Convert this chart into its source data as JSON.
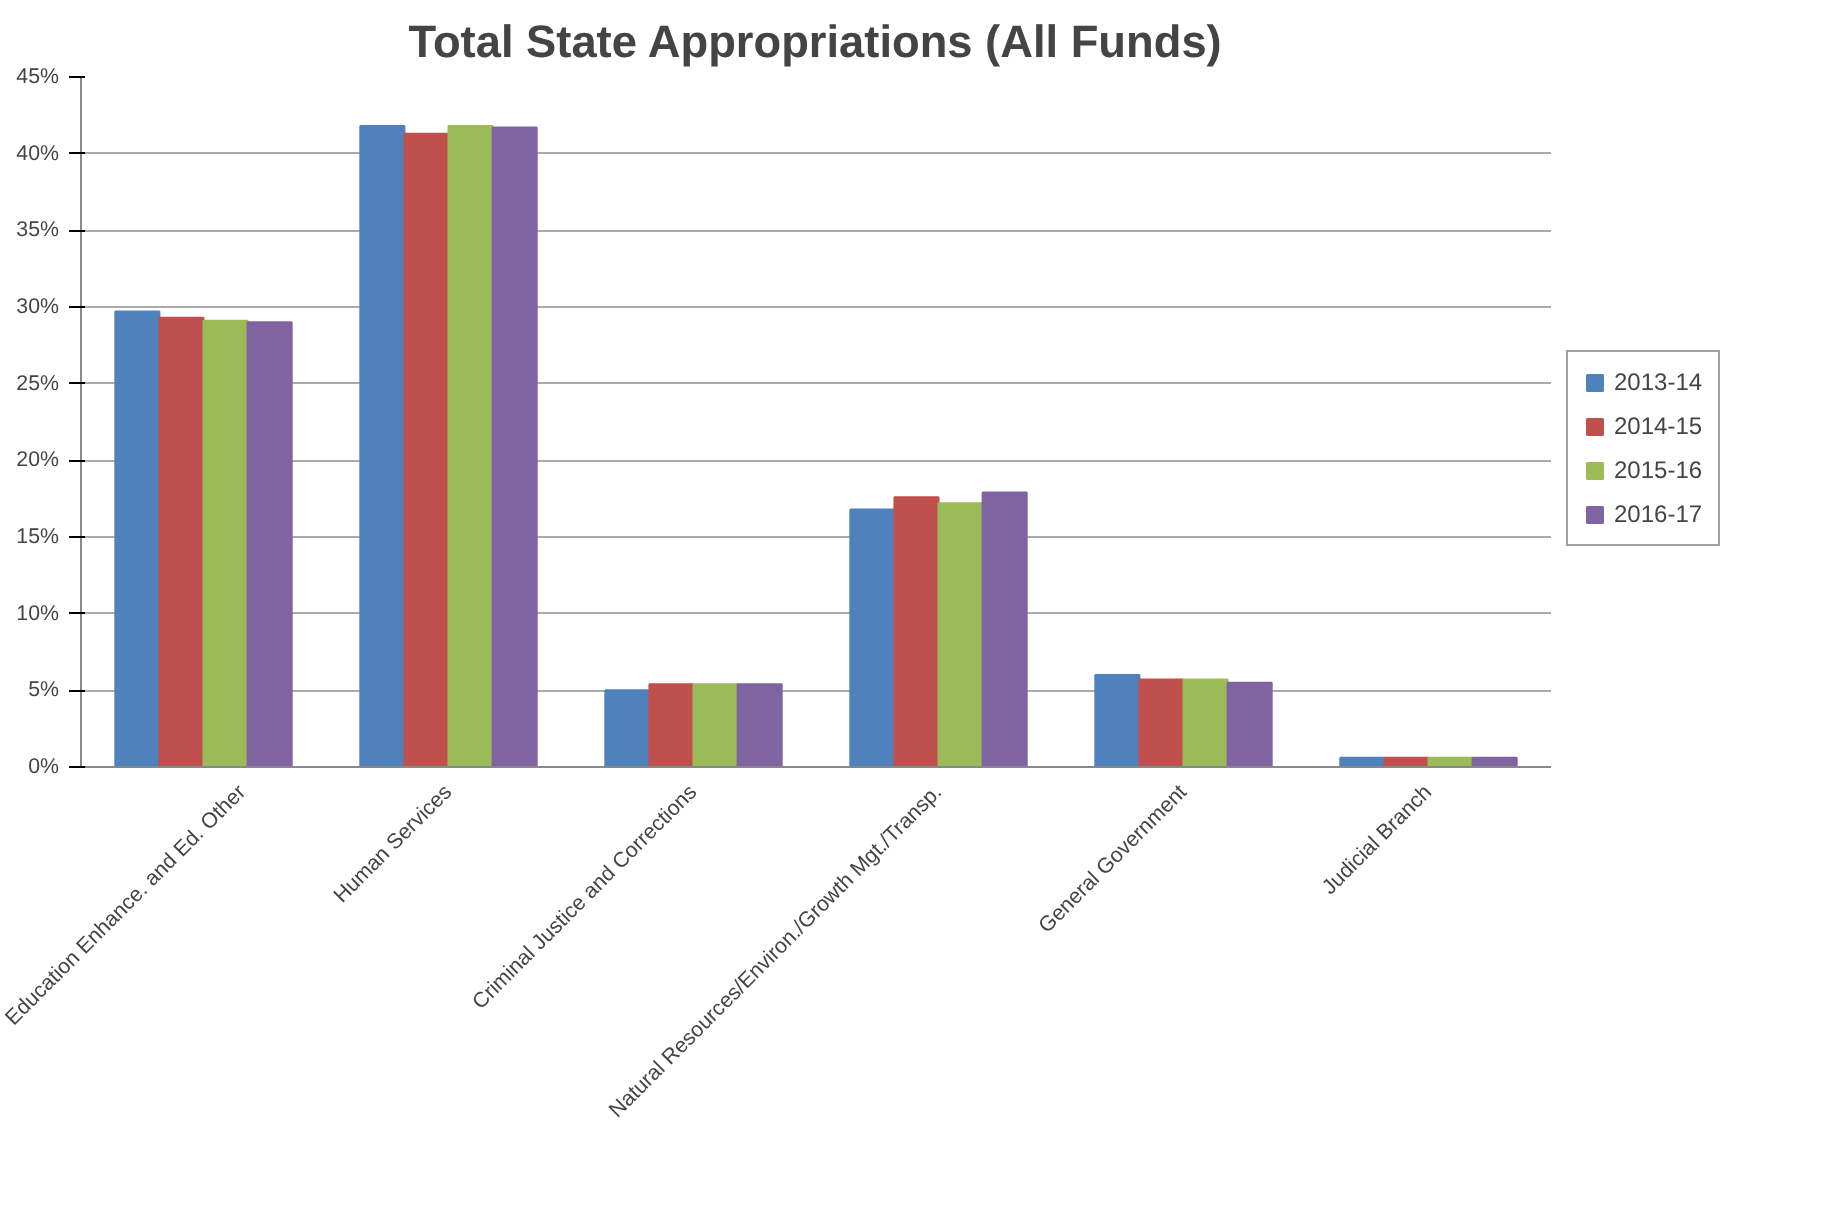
{
  "chart_data": {
    "type": "bar",
    "title": "Total State Appropriations (All Funds)",
    "categories": [
      "Education Enhance. and Ed. Other",
      "Human Services",
      "Criminal Justice and Corrections",
      "Natural Resources/Environ./Growth Mgt./Transp.",
      "General Government",
      "Judicial Branch"
    ],
    "series": [
      {
        "name": "2013-14",
        "color": "#4f81bd",
        "values": [
          29.7,
          41.8,
          5.0,
          16.8,
          6.0,
          0.6
        ]
      },
      {
        "name": "2014-15",
        "color": "#c0504d",
        "values": [
          29.3,
          41.3,
          5.4,
          17.6,
          5.7,
          0.6
        ]
      },
      {
        "name": "2015-16",
        "color": "#9bbb59",
        "values": [
          29.1,
          41.8,
          5.4,
          17.2,
          5.7,
          0.6
        ]
      },
      {
        "name": "2016-17",
        "color": "#8064a2",
        "values": [
          29.0,
          41.7,
          5.4,
          17.9,
          5.5,
          0.6
        ]
      }
    ],
    "ylim": [
      0,
      45
    ],
    "yticks": [
      {
        "value": 0,
        "label": "0%"
      },
      {
        "value": 5,
        "label": "5%"
      },
      {
        "value": 10,
        "label": "10%"
      },
      {
        "value": 15,
        "label": "15%"
      },
      {
        "value": 20,
        "label": "20%"
      },
      {
        "value": 25,
        "label": "25%"
      },
      {
        "value": 30,
        "label": "30%"
      },
      {
        "value": 35,
        "label": "35%"
      },
      {
        "value": 40,
        "label": "40%"
      },
      {
        "value": 45,
        "label": "45%"
      }
    ],
    "grid": "y",
    "legend": "right"
  }
}
